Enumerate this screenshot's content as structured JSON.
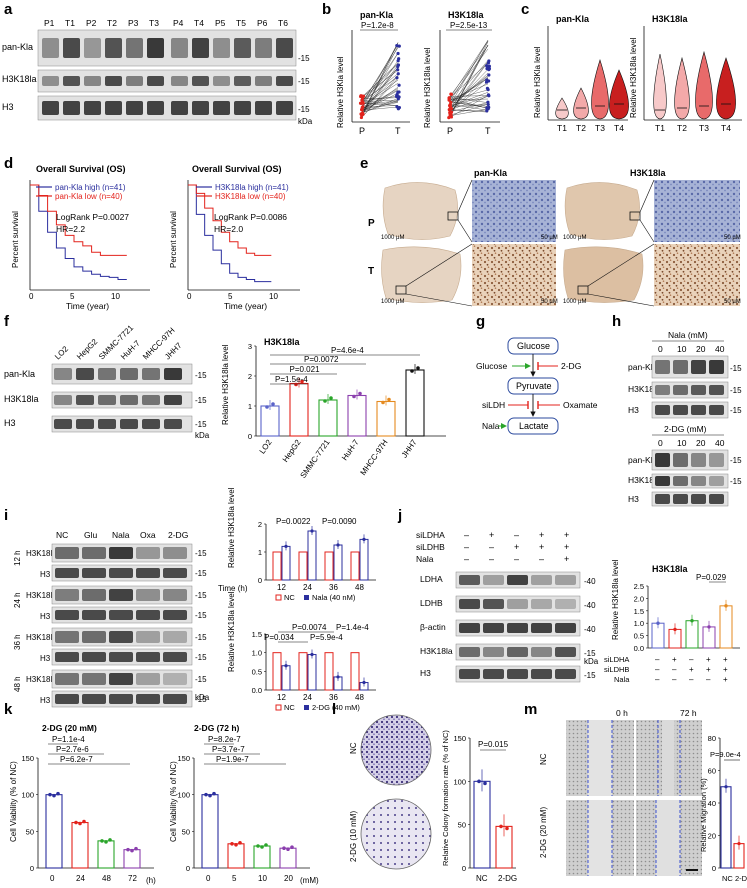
{
  "panels": {
    "a": {
      "letter": "a",
      "lanes_left": [
        "P1",
        "T1",
        "P2",
        "T2",
        "P3",
        "T3"
      ],
      "lanes_right": [
        "P4",
        "T4",
        "P5",
        "T5",
        "P6",
        "T6"
      ],
      "rows": [
        "pan-Kla",
        "H3K18la",
        "H3"
      ],
      "mw": [
        "-15",
        "-15",
        "-15"
      ],
      "unit": "kDa"
    },
    "b": {
      "letter": "b",
      "plot1": {
        "title": "pan-Kla",
        "pval": "P=1.2e-8",
        "ylabel": "Relative H3Kla level",
        "x": [
          "P",
          "T"
        ]
      },
      "plot2": {
        "title": "H3K18la",
        "pval": "P=2.5e-13",
        "ylabel": "Relative H3K18la level",
        "x": [
          "P",
          "T"
        ]
      }
    },
    "c": {
      "letter": "c",
      "plot1": {
        "title": "pan-Kla",
        "ylabel": "Relative H3Kla level",
        "x": [
          "T1",
          "T2",
          "T3",
          "T4"
        ]
      },
      "plot2": {
        "title": "H3K18la",
        "ylabel": "Relative H3K18la level",
        "x": [
          "T1",
          "T2",
          "T3",
          "T4"
        ]
      }
    },
    "d": {
      "letter": "d",
      "plot1": {
        "title": "Overall Survival (OS)",
        "legend_high": "pan-Kla high (n=41)",
        "legend_low": "pan-Kla low (n=40)",
        "logrank": "LogRank P=0.0027",
        "hr": "HR=2.2",
        "ylabel": "Percent survival",
        "xlabel": "Time (year)",
        "xticks": [
          "0",
          "5",
          "10"
        ]
      },
      "plot2": {
        "title": "Overall Survival (OS)",
        "legend_high": "H3K18la high (n=41)",
        "legend_low": "H3K18la low (n=40)",
        "logrank": "LogRank P=0.0086",
        "hr": "HR=2.0",
        "ylabel": "Percent survival",
        "xlabel": "Time (year)",
        "xticks": [
          "0",
          "5",
          "10"
        ]
      },
      "colors": {
        "high": "#2b2f9e",
        "low": "#e3231c"
      }
    },
    "e": {
      "letter": "e",
      "col1": "pan-Kla",
      "col2": "H3K18la",
      "row1": "P",
      "row2": "T",
      "scale_big": "1000 µM",
      "scale_small": "50 µM"
    },
    "f": {
      "letter": "f",
      "lanes": [
        "LO2",
        "HepG2",
        "SMMC-7721",
        "HuH-7",
        "MHCC-97H",
        "JHH7"
      ],
      "rows": [
        "pan-Kla",
        "H3K18la",
        "H3"
      ],
      "mw": [
        "-15",
        "-15",
        "-15"
      ],
      "unit": "kDa",
      "chart_title": "H3K18la",
      "ylabel": "Relative H3K18la level",
      "pvals": [
        "P=4.6e-4",
        "P=0.0072",
        "P=0.021",
        "P=1.5e-4"
      ]
    },
    "g": {
      "letter": "g",
      "glucose_box": "Glucose",
      "pyruvate_box": "Pyruvate",
      "lactate_box": "Lactate",
      "glucose_in": "Glucose",
      "dg": "2-DG",
      "sildh": "siLDH",
      "oxamate": "Oxamate",
      "nala": "Nala"
    },
    "h": {
      "letter": "h",
      "top_title": "Nala (mM)",
      "top_doses": [
        "0",
        "10",
        "20",
        "40"
      ],
      "bottom_title": "2-DG (mM)",
      "bottom_doses": [
        "0",
        "10",
        "20",
        "40"
      ],
      "rows": [
        "pan-Kla",
        "H3K18la",
        "H3"
      ],
      "mw": "-15"
    },
    "i": {
      "letter": "i",
      "cols": [
        "NC",
        "Glu",
        "Nala",
        "Oxa",
        "2-DG"
      ],
      "times": [
        "12 h",
        "24 h",
        "36 h",
        "48 h"
      ],
      "rows": [
        "H3K18la",
        "H3"
      ],
      "mw": "-15",
      "unit": "kDa",
      "chart1": {
        "ylabel": "Relative H3K18la level",
        "pvals": [
          "P=0.0022",
          "P=0.0090"
        ],
        "xlabel": "Time (h)",
        "xticks": [
          "12",
          "24",
          "36",
          "48"
        ],
        "legend": [
          "NC",
          "Nala (40 nM)"
        ]
      },
      "chart2": {
        "ylabel": "Relative H3K18la level",
        "pvals": [
          "P=0.0074",
          "P=1.4e-4",
          "P=0.034",
          "P=5.9e-4"
        ],
        "xticks": [
          "12",
          "24",
          "36",
          "48"
        ],
        "legend": [
          "NC",
          "2-DG (40 mM)"
        ]
      }
    },
    "j": {
      "letter": "j",
      "treat_labels": [
        "siLDHA",
        "siLDHB",
        "Nala"
      ],
      "treat_signs": [
        [
          "–",
          "+",
          "–",
          "+",
          "+"
        ],
        [
          "–",
          "–",
          "+",
          "+",
          "+"
        ],
        [
          "–",
          "–",
          "–",
          "–",
          "+"
        ]
      ],
      "rows": [
        "LDHA",
        "LDHB",
        "β-actin",
        "H3K18la",
        "H3"
      ],
      "mw": [
        "-40",
        "-40",
        "-40",
        "-15",
        "-15"
      ],
      "unit": "kDa",
      "chart_title": "H3K18la",
      "ylabel": "Relative H3K18la level",
      "pval": "P=0.029",
      "chart_signs": [
        [
          "–",
          "+",
          "–",
          "+",
          "+"
        ],
        [
          "–",
          "–",
          "+",
          "+",
          "+"
        ],
        [
          "–",
          "–",
          "–",
          "–",
          "+"
        ]
      ]
    },
    "k": {
      "letter": "k",
      "plot1": {
        "title": "2-DG (20 mM)",
        "ylabel": "Cell Viability (% of NC)",
        "pvals": [
          "P=1.1e-4",
          "P=2.7e-6",
          "P=6.2e-7"
        ],
        "xticks": [
          "0",
          "24",
          "48",
          "72"
        ],
        "xunit": "(h)"
      },
      "plot2": {
        "title": "2-DG (72 h)",
        "ylabel": "Cell Viability (% of NC)",
        "pvals": [
          "P=8.2e-7",
          "P=3.7e-7",
          "P=1.9e-7"
        ],
        "xticks": [
          "0",
          "5",
          "10",
          "20"
        ],
        "xunit": "(mM)"
      }
    },
    "l": {
      "letter": "l",
      "nc": "NC",
      "dg": "2-DG (10 mM)",
      "ylabel": "Relative Colony formation rate (% of NC)",
      "pval": "P=0.015",
      "xticks": [
        "NC",
        "2-DG"
      ]
    },
    "m": {
      "letter": "m",
      "t0": "0 h",
      "t72": "72 h",
      "nc": "NC",
      "dg": "2-DG (20 mM)",
      "ylabel": "Relative Migration (%)",
      "pval": "P=9.0e-4",
      "xticks": [
        "NC",
        "2-DG"
      ]
    }
  },
  "chart_data": [
    {
      "type": "bar",
      "title": "H3K18la (f)",
      "categories": [
        "LO2",
        "HepG2",
        "SMMC-7721",
        "HuH-7",
        "MHCC-97H",
        "JHH7"
      ],
      "values": [
        1.0,
        1.75,
        1.2,
        1.35,
        1.15,
        2.2
      ],
      "ylim": [
        0,
        3
      ],
      "yticks": [
        "0",
        "1",
        "2",
        "3"
      ],
      "ylabel": "Relative H3K18la level"
    },
    {
      "type": "bar",
      "title": "Nala vs NC (i)",
      "categories": [
        "12",
        "24",
        "36",
        "48"
      ],
      "series": [
        {
          "name": "NC",
          "values": [
            1,
            1,
            1,
            1
          ]
        },
        {
          "name": "Nala (40 nM)",
          "values": [
            1.2,
            1.75,
            1.25,
            1.45
          ]
        }
      ],
      "ylim": [
        0,
        2
      ],
      "yticks": [
        "0",
        "1",
        "2"
      ]
    },
    {
      "type": "bar",
      "title": "2-DG vs NC (i)",
      "categories": [
        "12",
        "24",
        "36",
        "48"
      ],
      "series": [
        {
          "name": "NC",
          "values": [
            1,
            1,
            1,
            1
          ]
        },
        {
          "name": "2-DG (40 mM)",
          "values": [
            0.65,
            0.95,
            0.35,
            0.2
          ]
        }
      ],
      "ylim": [
        0,
        1.5
      ],
      "yticks": [
        "0.0",
        "0.5",
        "1.0",
        "1.5"
      ]
    },
    {
      "type": "bar",
      "title": "H3K18la (j)",
      "categories": [
        "1",
        "2",
        "3",
        "4",
        "5"
      ],
      "values": [
        1.0,
        0.75,
        1.1,
        0.85,
        1.7
      ],
      "ylim": [
        0,
        2.5
      ],
      "yticks": [
        "0.0",
        "0.5",
        "1.0",
        "1.5",
        "2.0",
        "2.5"
      ]
    },
    {
      "type": "bar",
      "title": "2-DG (20 mM)",
      "categories": [
        "0",
        "24",
        "48",
        "72"
      ],
      "values": [
        100,
        62,
        37,
        25
      ],
      "ylim": [
        0,
        150
      ],
      "yticks": [
        "0",
        "50",
        "100",
        "150"
      ]
    },
    {
      "type": "bar",
      "title": "2-DG (72 h)",
      "categories": [
        "0",
        "5",
        "10",
        "20"
      ],
      "values": [
        100,
        33,
        30,
        27
      ],
      "ylim": [
        0,
        150
      ],
      "yticks": [
        "0",
        "50",
        "100",
        "150"
      ]
    },
    {
      "type": "bar",
      "title": "Colony formation (l)",
      "categories": [
        "NC",
        "2-DG"
      ],
      "values": [
        100,
        48
      ],
      "ylim": [
        0,
        150
      ],
      "yticks": [
        "0",
        "50",
        "100",
        "150"
      ]
    },
    {
      "type": "bar",
      "title": "Migration (m)",
      "categories": [
        "NC",
        "2-DG"
      ],
      "values": [
        50,
        15
      ],
      "ylim": [
        0,
        80
      ],
      "yticks": [
        "0",
        "20",
        "40",
        "60",
        "80"
      ]
    },
    {
      "type": "line",
      "title": "pan-Kla OS (d)",
      "series": [
        {
          "name": "pan-Kla high (n=41)",
          "x": [
            0,
            1,
            2,
            3,
            4,
            5,
            6,
            7,
            8,
            9,
            10,
            11
          ],
          "y": [
            100,
            75,
            55,
            40,
            30,
            22,
            18,
            15,
            13,
            12,
            10,
            10
          ]
        },
        {
          "name": "pan-Kla low (n=40)",
          "x": [
            0,
            1,
            2,
            3,
            4,
            5,
            6,
            7,
            8,
            9,
            10,
            11
          ],
          "y": [
            100,
            90,
            75,
            62,
            52,
            46,
            42,
            36,
            33,
            33,
            33,
            33
          ]
        }
      ],
      "ylabel": "Percent survival",
      "xlabel": "Time (year)"
    },
    {
      "type": "line",
      "title": "H3K18la OS (d)",
      "series": [
        {
          "name": "H3K18la high (n=41)",
          "x": [
            0,
            1,
            2,
            3,
            4,
            5,
            6,
            7,
            8,
            9,
            10
          ],
          "y": [
            100,
            72,
            52,
            38,
            25,
            16,
            12,
            10,
            8,
            8,
            8
          ]
        },
        {
          "name": "H3K18la low (n=40)",
          "x": [
            0,
            1,
            2,
            3,
            4,
            5,
            6,
            7,
            8,
            9,
            10
          ],
          "y": [
            100,
            92,
            78,
            66,
            55,
            46,
            40,
            35,
            33,
            33,
            33
          ]
        }
      ],
      "ylabel": "Percent survival",
      "xlabel": "Time (year)"
    }
  ]
}
